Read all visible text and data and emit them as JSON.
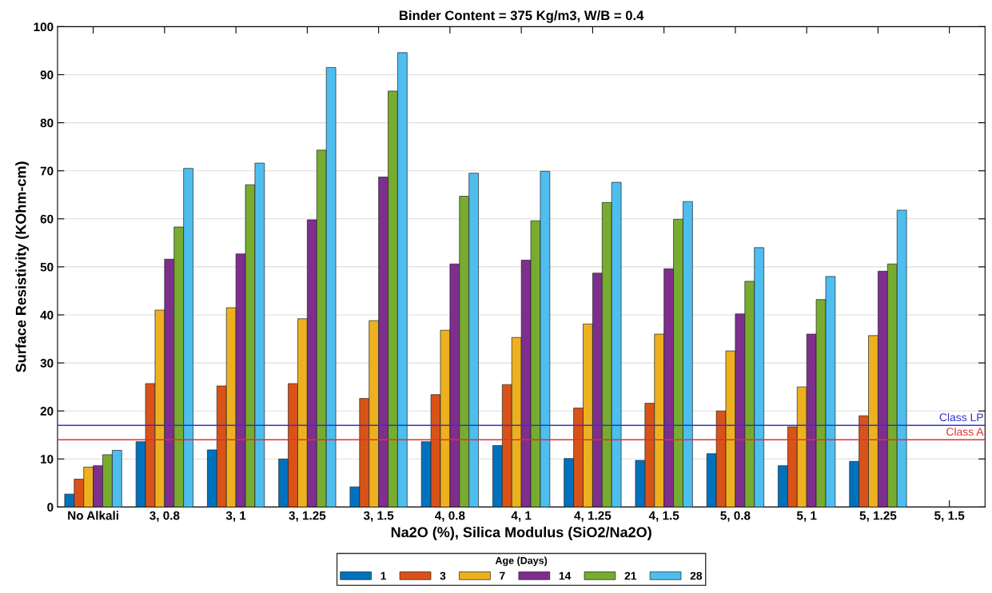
{
  "chart_data": {
    "type": "bar",
    "title": "Binder Content = 375 Kg/m3, W/B = 0.4",
    "xlabel": "Na2O (%), Silica Modulus (SiO2/Na2O)",
    "ylabel": "Surface Resistivity (KOhm-cm)",
    "legend_title": "Age (Days)",
    "categories": [
      "No Alkali",
      "3, 0.8",
      "3, 1",
      "3, 1.25",
      "3, 1.5",
      "4, 0.8",
      "4, 1",
      "4, 1.25",
      "4, 1.5",
      "5, 0.8",
      "5, 1",
      "5, 1.25",
      "5, 1.5"
    ],
    "series": [
      {
        "name": "1",
        "color": "#0072bd",
        "values": [
          2.7,
          13.6,
          11.9,
          10.0,
          4.2,
          13.6,
          12.8,
          10.1,
          9.7,
          11.1,
          8.6,
          9.5,
          null
        ]
      },
      {
        "name": "3",
        "color": "#d95319",
        "values": [
          5.8,
          25.7,
          25.2,
          25.7,
          22.6,
          23.4,
          25.5,
          20.6,
          21.6,
          20.0,
          16.7,
          19.0,
          null
        ]
      },
      {
        "name": "7",
        "color": "#edb120",
        "values": [
          8.3,
          41.0,
          41.5,
          39.2,
          38.8,
          36.8,
          35.3,
          38.1,
          36.0,
          32.5,
          25.0,
          35.7,
          null
        ]
      },
      {
        "name": "14",
        "color": "#7e2f8e",
        "values": [
          8.6,
          51.6,
          52.7,
          59.8,
          68.7,
          50.6,
          51.4,
          48.7,
          49.6,
          40.2,
          36.0,
          49.1,
          null
        ]
      },
      {
        "name": "21",
        "color": "#77ac30",
        "values": [
          10.9,
          58.3,
          67.1,
          74.3,
          86.6,
          64.7,
          59.6,
          63.4,
          59.9,
          47.0,
          43.2,
          50.6,
          null
        ]
      },
      {
        "name": "28",
        "color": "#4dbeee",
        "values": [
          11.8,
          70.5,
          71.6,
          91.5,
          94.6,
          69.5,
          69.9,
          67.6,
          63.6,
          54.0,
          48.0,
          61.8,
          null
        ]
      }
    ],
    "ylim": [
      0,
      100
    ],
    "yticks": [
      0,
      10,
      20,
      30,
      40,
      50,
      60,
      70,
      80,
      90,
      100
    ],
    "ref_lines": [
      {
        "axis": "y",
        "value": 17,
        "label": "Class LP",
        "color": "#3333cc"
      },
      {
        "axis": "y",
        "value": 14,
        "label": "Class A",
        "color": "#e03030"
      }
    ],
    "grid": "y",
    "legend": "bottom"
  }
}
